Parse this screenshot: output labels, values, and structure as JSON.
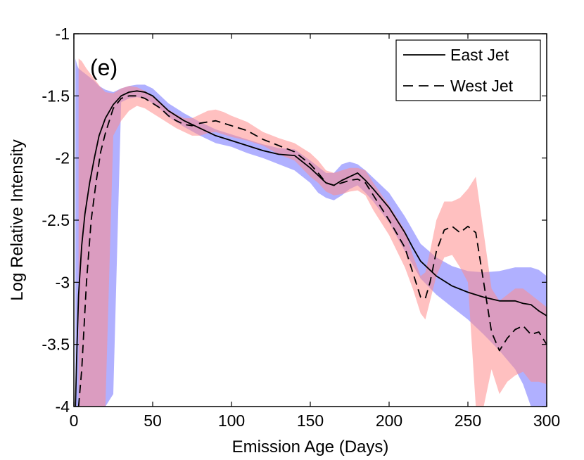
{
  "chart_data": {
    "type": "line",
    "panel_label": "(e)",
    "xlabel": "Emission Age (Days)",
    "ylabel": "Log Relative Intensity",
    "xlim": [
      0,
      300
    ],
    "ylim": [
      -4,
      -1
    ],
    "xticks": [
      0,
      50,
      100,
      150,
      200,
      250,
      300
    ],
    "xtick_labels": [
      "0",
      "50",
      "100",
      "150",
      "200",
      "250",
      "300"
    ],
    "yticks": [
      -1,
      -1.5,
      -2,
      -2.5,
      -3,
      -3.5,
      -4
    ],
    "ytick_labels": [
      "-1",
      "-1.5",
      "-2",
      "-2.5",
      "-3",
      "-3.5",
      "-4"
    ],
    "grid": false,
    "legend_position": "top-right",
    "series": [
      {
        "name": "East Jet",
        "line_style": "solid",
        "line_color": "#000000",
        "band_color": "#7070ff",
        "x": [
          1,
          2,
          3,
          5,
          7,
          10,
          13,
          16,
          20,
          25,
          30,
          35,
          40,
          45,
          50,
          55,
          60,
          70,
          80,
          90,
          100,
          110,
          120,
          130,
          140,
          150,
          155,
          160,
          165,
          170,
          175,
          180,
          185,
          190,
          200,
          210,
          215,
          220,
          230,
          240,
          250,
          260,
          270,
          280,
          285,
          290,
          295,
          300
        ],
        "y": [
          -4.0,
          -3.5,
          -3.1,
          -2.7,
          -2.45,
          -2.2,
          -2.0,
          -1.82,
          -1.68,
          -1.57,
          -1.5,
          -1.47,
          -1.46,
          -1.47,
          -1.5,
          -1.56,
          -1.62,
          -1.7,
          -1.76,
          -1.82,
          -1.86,
          -1.9,
          -1.94,
          -1.97,
          -1.98,
          -2.08,
          -2.14,
          -2.2,
          -2.22,
          -2.18,
          -2.15,
          -2.12,
          -2.18,
          -2.25,
          -2.4,
          -2.6,
          -2.72,
          -2.83,
          -2.95,
          -3.03,
          -3.08,
          -3.12,
          -3.15,
          -3.15,
          -3.17,
          -3.18,
          -3.23,
          -3.27
        ],
        "band_upper": [
          -1.2,
          -1.25,
          -1.28,
          -1.3,
          -1.32,
          -1.35,
          -1.38,
          -1.42,
          -1.45,
          -1.47,
          -1.44,
          -1.42,
          -1.41,
          -1.41,
          -1.44,
          -1.5,
          -1.56,
          -1.64,
          -1.71,
          -1.77,
          -1.81,
          -1.85,
          -1.89,
          -1.92,
          -1.93,
          -2.02,
          -2.07,
          -2.12,
          -2.12,
          -2.05,
          -2.03,
          -2.05,
          -2.1,
          -2.16,
          -2.28,
          -2.47,
          -2.58,
          -2.69,
          -2.8,
          -2.87,
          -2.91,
          -2.92,
          -2.91,
          -2.88,
          -2.88,
          -2.88,
          -2.9,
          -2.95
        ],
        "band_lower": [
          -4.0,
          -4.0,
          -4.0,
          -4.0,
          -4.0,
          -4.0,
          -4.0,
          -4.0,
          -4.0,
          -3.9,
          -1.55,
          -1.52,
          -1.51,
          -1.52,
          -1.56,
          -1.61,
          -1.67,
          -1.75,
          -1.82,
          -1.88,
          -1.91,
          -1.96,
          -2.0,
          -2.05,
          -2.1,
          -2.2,
          -2.28,
          -2.32,
          -2.34,
          -2.3,
          -2.25,
          -2.22,
          -2.28,
          -2.35,
          -2.52,
          -2.75,
          -2.86,
          -2.97,
          -3.1,
          -3.2,
          -3.3,
          -3.42,
          -3.55,
          -3.7,
          -3.82,
          -4.0,
          -4.0,
          -4.0
        ]
      },
      {
        "name": "West Jet",
        "line_style": "dashed",
        "line_color": "#000000",
        "band_color": "#ff8c8c",
        "x": [
          3,
          5,
          8,
          11,
          14,
          17,
          20,
          25,
          30,
          35,
          40,
          45,
          50,
          55,
          60,
          65,
          70,
          75,
          80,
          85,
          90,
          95,
          100,
          110,
          120,
          130,
          140,
          150,
          155,
          160,
          165,
          170,
          175,
          180,
          185,
          190,
          200,
          210,
          215,
          220,
          223,
          226,
          230,
          235,
          240,
          245,
          250,
          255,
          260,
          265,
          270,
          275,
          280,
          285,
          290,
          295,
          300
        ],
        "y": [
          -4.0,
          -3.7,
          -3.0,
          -2.5,
          -2.2,
          -1.95,
          -1.8,
          -1.6,
          -1.52,
          -1.5,
          -1.5,
          -1.52,
          -1.56,
          -1.6,
          -1.66,
          -1.7,
          -1.73,
          -1.74,
          -1.72,
          -1.71,
          -1.7,
          -1.72,
          -1.74,
          -1.78,
          -1.85,
          -1.9,
          -1.95,
          -2.05,
          -2.12,
          -2.2,
          -2.22,
          -2.2,
          -2.18,
          -2.17,
          -2.2,
          -2.3,
          -2.5,
          -2.72,
          -2.92,
          -3.12,
          -3.13,
          -3.0,
          -2.75,
          -2.58,
          -2.55,
          -2.6,
          -2.55,
          -2.6,
          -3.0,
          -3.4,
          -3.55,
          -3.45,
          -3.38,
          -3.35,
          -3.42,
          -3.4,
          -3.5
        ],
        "band_upper": [
          -1.2,
          -1.22,
          -1.28,
          -1.33,
          -1.38,
          -1.43,
          -1.47,
          -1.48,
          -1.44,
          -1.42,
          -1.43,
          -1.46,
          -1.5,
          -1.55,
          -1.61,
          -1.65,
          -1.68,
          -1.68,
          -1.65,
          -1.62,
          -1.61,
          -1.63,
          -1.66,
          -1.71,
          -1.79,
          -1.84,
          -1.88,
          -1.96,
          -2.02,
          -2.1,
          -2.12,
          -2.1,
          -2.08,
          -2.08,
          -2.1,
          -2.2,
          -2.38,
          -2.58,
          -2.78,
          -2.95,
          -2.92,
          -2.75,
          -2.5,
          -2.35,
          -2.35,
          -2.32,
          -2.25,
          -2.15,
          -2.6,
          -3.05,
          -3.15,
          -3.1,
          -3.05,
          -3.05,
          -3.1,
          -3.15,
          -3.2
        ],
        "band_lower": [
          -4.0,
          -4.0,
          -4.0,
          -4.0,
          -4.0,
          -4.0,
          -4.0,
          -1.82,
          -1.7,
          -1.62,
          -1.58,
          -1.6,
          -1.64,
          -1.68,
          -1.72,
          -1.76,
          -1.79,
          -1.82,
          -1.82,
          -1.8,
          -1.79,
          -1.81,
          -1.83,
          -1.86,
          -1.9,
          -1.97,
          -2.02,
          -2.15,
          -2.2,
          -2.27,
          -2.3,
          -2.29,
          -2.27,
          -2.26,
          -2.3,
          -2.42,
          -2.62,
          -2.88,
          -3.05,
          -3.25,
          -3.3,
          -3.15,
          -2.95,
          -2.8,
          -2.78,
          -2.88,
          -3.0,
          -4.0,
          -4.0,
          -3.7,
          -3.9,
          -3.8,
          -3.75,
          -3.72,
          -3.8,
          -3.8,
          -3.82
        ]
      }
    ]
  }
}
